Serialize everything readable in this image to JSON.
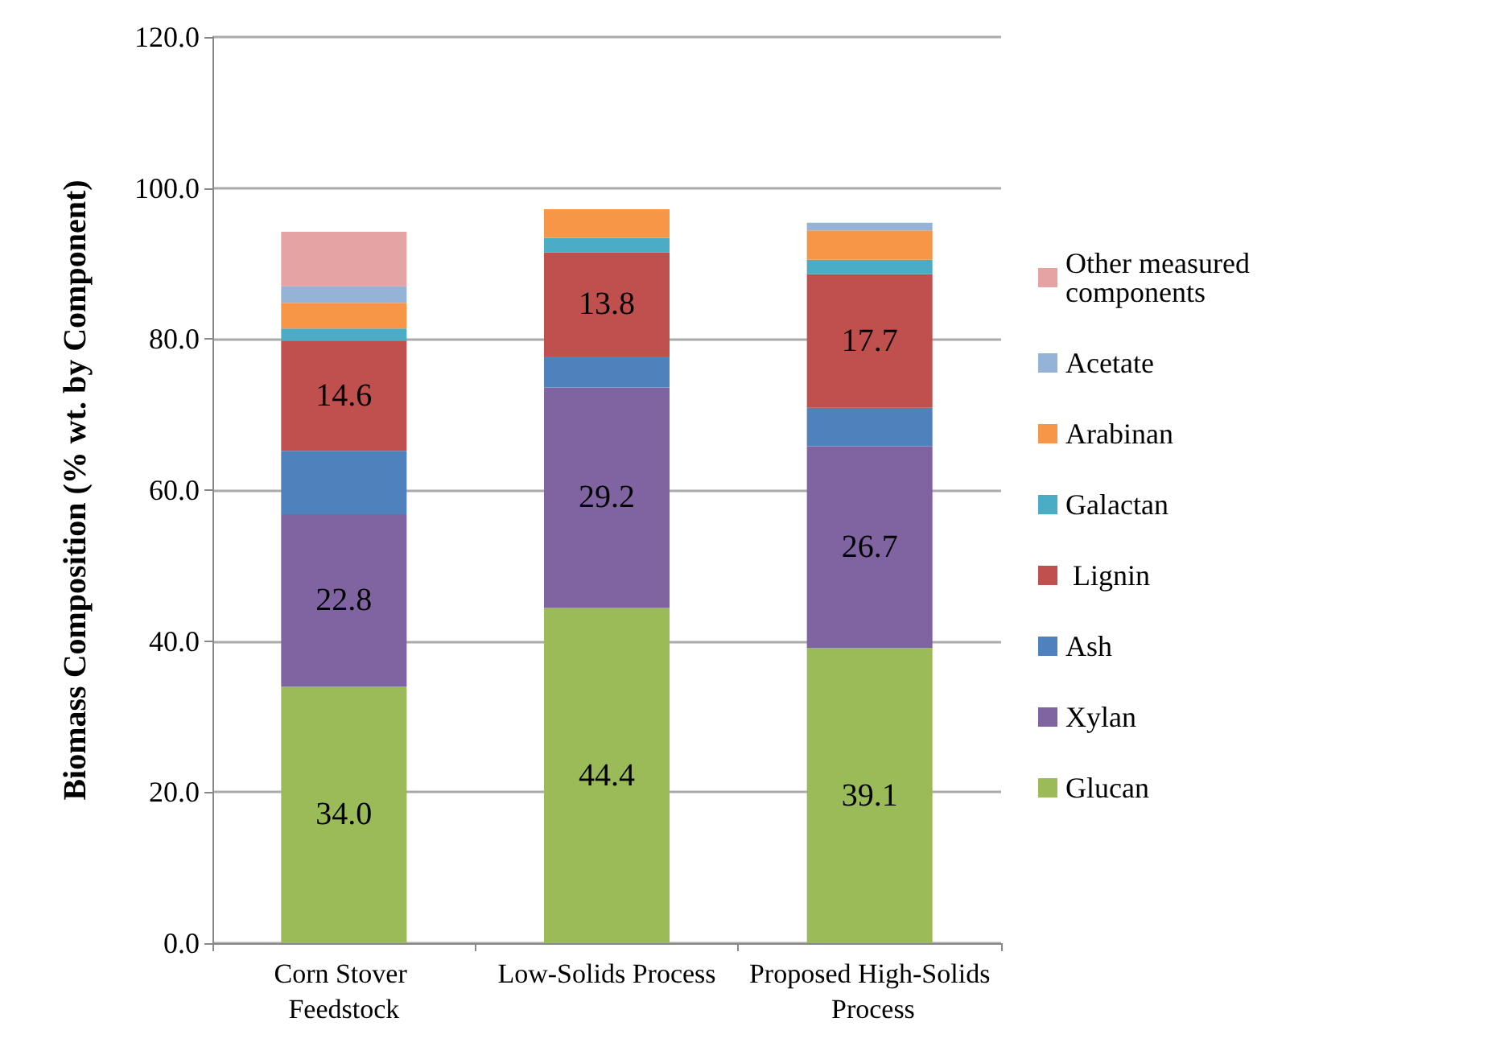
{
  "chart_data": {
    "type": "bar",
    "stacked": true,
    "ylabel": "Biomass Composition (% wt. by Component)",
    "categories": [
      "Corn Stover Feedstock",
      "Low-Solids Process",
      "Proposed High-Solids Process"
    ],
    "series": [
      {
        "name": "Glucan",
        "color": "#9bbb59",
        "values": [
          34.0,
          44.4,
          39.1
        ],
        "value_labels": [
          "34.0",
          "44.4",
          "39.1"
        ]
      },
      {
        "name": "Xylan",
        "color": "#8064a2",
        "values": [
          22.8,
          29.2,
          26.7
        ],
        "value_labels": [
          "22.8",
          "29.2",
          "26.7"
        ]
      },
      {
        "name": "Ash",
        "color": "#4f81bd",
        "values": [
          8.4,
          4.1,
          5.1
        ]
      },
      {
        "name": " Lignin",
        "color": "#c0504d",
        "values": [
          14.6,
          13.8,
          17.7
        ],
        "value_labels": [
          "14.6",
          "13.8",
          "17.7"
        ]
      },
      {
        "name": "Galactan",
        "color": "#4bacc6",
        "values": [
          1.6,
          1.9,
          1.9
        ]
      },
      {
        "name": "Arabinan",
        "color": "#f79646",
        "values": [
          3.4,
          3.8,
          3.9
        ]
      },
      {
        "name": "Acetate",
        "color": "#95b3d7",
        "values": [
          2.2,
          null,
          1.0
        ]
      },
      {
        "name": "Other measured components",
        "color": "#e6a3a3",
        "values": [
          7.2,
          null,
          null
        ]
      }
    ],
    "ylim": [
      0,
      120
    ],
    "yticks": [
      {
        "value": 0,
        "label": "0.0"
      },
      {
        "value": 20,
        "label": "20.0"
      },
      {
        "value": 40,
        "label": "40.0"
      },
      {
        "value": 60,
        "label": "60.0"
      },
      {
        "value": 80,
        "label": "80.0"
      },
      {
        "value": 100,
        "label": "100.0"
      },
      {
        "value": 120,
        "label": "120.0"
      }
    ],
    "grid": "y",
    "legend": "right"
  }
}
